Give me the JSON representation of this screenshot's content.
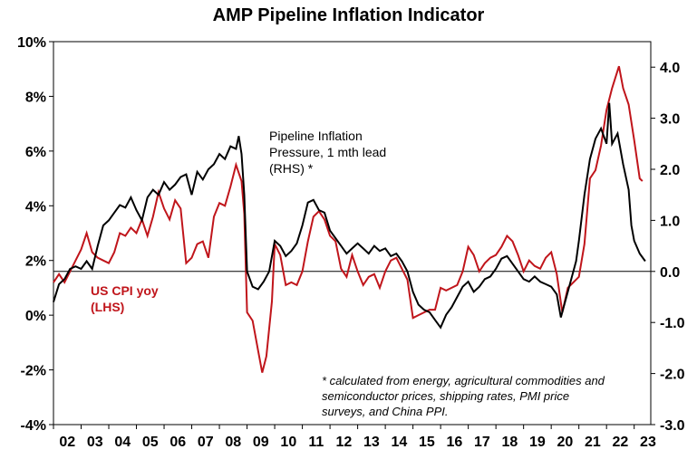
{
  "chart_data": {
    "type": "line",
    "title": "AMP Pipeline Inflation Indicator",
    "x_ticks": [
      "02",
      "03",
      "04",
      "05",
      "06",
      "07",
      "08",
      "09",
      "10",
      "11",
      "12",
      "13",
      "14",
      "15",
      "16",
      "17",
      "18",
      "19",
      "20",
      "21",
      "22",
      "23"
    ],
    "y_left_ticks": [
      "10%",
      "8%",
      "6%",
      "4%",
      "2%",
      "0%",
      "-2%",
      "-4%"
    ],
    "y_right_ticks": [
      "4.0",
      "3.0",
      "2.0",
      "1.0",
      "0.0",
      "-1.0",
      "-2.0",
      "-3.0"
    ],
    "ylim_left": [
      -4,
      10
    ],
    "ylim_right": [
      -3,
      4.5
    ],
    "xlim": [
      2002.0,
      2023.6
    ],
    "colors": {
      "cpi": "#c0151b",
      "pipeline": "#000000"
    },
    "annotations": {
      "pipeline_label": [
        "Pipeline Inflation",
        "Pressure, 1 mth lead",
        "(RHS) *"
      ],
      "cpi_label": [
        "US CPI yoy",
        "(LHS)"
      ],
      "footnote": [
        "* calculated from energy, agricultural commodities and",
        "semiconductor prices, shipping rates, PMI price",
        "surveys, and China PPI."
      ]
    },
    "series": [
      {
        "name": "US CPI yoy",
        "axis": "left",
        "points": [
          [
            2002.0,
            1.2
          ],
          [
            2002.2,
            1.5
          ],
          [
            2002.4,
            1.2
          ],
          [
            2002.6,
            1.6
          ],
          [
            2002.8,
            2.0
          ],
          [
            2003.0,
            2.4
          ],
          [
            2003.2,
            3.0
          ],
          [
            2003.4,
            2.3
          ],
          [
            2003.6,
            2.1
          ],
          [
            2003.8,
            2.0
          ],
          [
            2004.0,
            1.9
          ],
          [
            2004.2,
            2.3
          ],
          [
            2004.4,
            3.0
          ],
          [
            2004.6,
            2.9
          ],
          [
            2004.8,
            3.2
          ],
          [
            2005.0,
            3.0
          ],
          [
            2005.2,
            3.5
          ],
          [
            2005.4,
            2.9
          ],
          [
            2005.6,
            3.6
          ],
          [
            2005.8,
            4.5
          ],
          [
            2006.0,
            3.9
          ],
          [
            2006.2,
            3.5
          ],
          [
            2006.4,
            4.2
          ],
          [
            2006.6,
            3.9
          ],
          [
            2006.8,
            1.9
          ],
          [
            2007.0,
            2.1
          ],
          [
            2007.2,
            2.6
          ],
          [
            2007.4,
            2.7
          ],
          [
            2007.6,
            2.1
          ],
          [
            2007.8,
            3.6
          ],
          [
            2008.0,
            4.1
          ],
          [
            2008.2,
            4.0
          ],
          [
            2008.4,
            4.7
          ],
          [
            2008.6,
            5.5
          ],
          [
            2008.8,
            4.9
          ],
          [
            2008.9,
            3.7
          ],
          [
            2009.0,
            0.1
          ],
          [
            2009.2,
            -0.2
          ],
          [
            2009.4,
            -1.3
          ],
          [
            2009.55,
            -2.1
          ],
          [
            2009.7,
            -1.5
          ],
          [
            2009.9,
            0.5
          ],
          [
            2010.0,
            2.6
          ],
          [
            2010.2,
            2.2
          ],
          [
            2010.4,
            1.1
          ],
          [
            2010.6,
            1.2
          ],
          [
            2010.8,
            1.1
          ],
          [
            2011.0,
            1.6
          ],
          [
            2011.2,
            2.7
          ],
          [
            2011.4,
            3.6
          ],
          [
            2011.6,
            3.8
          ],
          [
            2011.8,
            3.5
          ],
          [
            2012.0,
            2.9
          ],
          [
            2012.2,
            2.7
          ],
          [
            2012.4,
            1.7
          ],
          [
            2012.6,
            1.4
          ],
          [
            2012.8,
            2.2
          ],
          [
            2013.0,
            1.6
          ],
          [
            2013.2,
            1.1
          ],
          [
            2013.4,
            1.4
          ],
          [
            2013.6,
            1.5
          ],
          [
            2013.8,
            1.0
          ],
          [
            2014.0,
            1.6
          ],
          [
            2014.2,
            2.0
          ],
          [
            2014.4,
            2.1
          ],
          [
            2014.6,
            1.7
          ],
          [
            2014.8,
            1.3
          ],
          [
            2015.0,
            -0.1
          ],
          [
            2015.2,
            0.0
          ],
          [
            2015.4,
            0.1
          ],
          [
            2015.6,
            0.2
          ],
          [
            2015.8,
            0.2
          ],
          [
            2016.0,
            1.0
          ],
          [
            2016.2,
            0.9
          ],
          [
            2016.4,
            1.0
          ],
          [
            2016.6,
            1.1
          ],
          [
            2016.8,
            1.6
          ],
          [
            2017.0,
            2.5
          ],
          [
            2017.2,
            2.2
          ],
          [
            2017.4,
            1.6
          ],
          [
            2017.6,
            1.9
          ],
          [
            2017.8,
            2.1
          ],
          [
            2018.0,
            2.2
          ],
          [
            2018.2,
            2.5
          ],
          [
            2018.4,
            2.9
          ],
          [
            2018.6,
            2.7
          ],
          [
            2018.8,
            2.2
          ],
          [
            2019.0,
            1.6
          ],
          [
            2019.2,
            2.0
          ],
          [
            2019.4,
            1.8
          ],
          [
            2019.6,
            1.7
          ],
          [
            2019.8,
            2.1
          ],
          [
            2020.0,
            2.3
          ],
          [
            2020.2,
            1.5
          ],
          [
            2020.4,
            0.1
          ],
          [
            2020.6,
            1.0
          ],
          [
            2020.8,
            1.2
          ],
          [
            2021.0,
            1.4
          ],
          [
            2021.2,
            2.6
          ],
          [
            2021.4,
            5.0
          ],
          [
            2021.6,
            5.3
          ],
          [
            2021.8,
            6.2
          ],
          [
            2022.0,
            7.5
          ],
          [
            2022.2,
            8.3
          ],
          [
            2022.45,
            9.1
          ],
          [
            2022.6,
            8.3
          ],
          [
            2022.8,
            7.7
          ],
          [
            2023.0,
            6.4
          ],
          [
            2023.2,
            5.0
          ],
          [
            2023.3,
            4.9
          ]
        ]
      },
      {
        "name": "Pipeline Inflation Pressure, 1 mth lead",
        "axis": "right",
        "points": [
          [
            2002.0,
            -0.6
          ],
          [
            2002.2,
            -0.25
          ],
          [
            2002.4,
            -0.15
          ],
          [
            2002.6,
            0.05
          ],
          [
            2002.8,
            0.1
          ],
          [
            2003.0,
            0.05
          ],
          [
            2003.2,
            0.2
          ],
          [
            2003.4,
            0.05
          ],
          [
            2003.6,
            0.5
          ],
          [
            2003.8,
            0.9
          ],
          [
            2004.0,
            1.0
          ],
          [
            2004.2,
            1.15
          ],
          [
            2004.4,
            1.3
          ],
          [
            2004.6,
            1.25
          ],
          [
            2004.8,
            1.45
          ],
          [
            2005.0,
            1.2
          ],
          [
            2005.2,
            1.0
          ],
          [
            2005.4,
            1.45
          ],
          [
            2005.6,
            1.6
          ],
          [
            2005.8,
            1.5
          ],
          [
            2006.0,
            1.75
          ],
          [
            2006.2,
            1.6
          ],
          [
            2006.4,
            1.7
          ],
          [
            2006.6,
            1.85
          ],
          [
            2006.8,
            1.9
          ],
          [
            2007.0,
            1.5
          ],
          [
            2007.2,
            1.95
          ],
          [
            2007.4,
            1.8
          ],
          [
            2007.6,
            2.0
          ],
          [
            2007.8,
            2.1
          ],
          [
            2008.0,
            2.3
          ],
          [
            2008.2,
            2.2
          ],
          [
            2008.4,
            2.45
          ],
          [
            2008.6,
            2.4
          ],
          [
            2008.7,
            2.65
          ],
          [
            2008.8,
            2.3
          ],
          [
            2008.9,
            1.5
          ],
          [
            2009.0,
            0.0
          ],
          [
            2009.2,
            -0.3
          ],
          [
            2009.4,
            -0.35
          ],
          [
            2009.6,
            -0.2
          ],
          [
            2009.8,
            0.0
          ],
          [
            2010.0,
            0.6
          ],
          [
            2010.2,
            0.5
          ],
          [
            2010.4,
            0.3
          ],
          [
            2010.6,
            0.4
          ],
          [
            2010.8,
            0.55
          ],
          [
            2011.0,
            0.9
          ],
          [
            2011.2,
            1.35
          ],
          [
            2011.4,
            1.4
          ],
          [
            2011.6,
            1.2
          ],
          [
            2011.8,
            1.15
          ],
          [
            2012.0,
            0.8
          ],
          [
            2012.2,
            0.65
          ],
          [
            2012.4,
            0.5
          ],
          [
            2012.6,
            0.35
          ],
          [
            2012.8,
            0.45
          ],
          [
            2013.0,
            0.55
          ],
          [
            2013.2,
            0.45
          ],
          [
            2013.4,
            0.35
          ],
          [
            2013.6,
            0.5
          ],
          [
            2013.8,
            0.4
          ],
          [
            2014.0,
            0.45
          ],
          [
            2014.2,
            0.3
          ],
          [
            2014.4,
            0.35
          ],
          [
            2014.6,
            0.2
          ],
          [
            2014.8,
            0.0
          ],
          [
            2015.0,
            -0.4
          ],
          [
            2015.2,
            -0.65
          ],
          [
            2015.4,
            -0.75
          ],
          [
            2015.6,
            -0.8
          ],
          [
            2015.8,
            -0.95
          ],
          [
            2016.0,
            -1.1
          ],
          [
            2016.2,
            -0.85
          ],
          [
            2016.4,
            -0.7
          ],
          [
            2016.6,
            -0.5
          ],
          [
            2016.8,
            -0.3
          ],
          [
            2017.0,
            -0.2
          ],
          [
            2017.2,
            -0.4
          ],
          [
            2017.4,
            -0.3
          ],
          [
            2017.6,
            -0.15
          ],
          [
            2017.8,
            -0.1
          ],
          [
            2018.0,
            0.05
          ],
          [
            2018.2,
            0.25
          ],
          [
            2018.4,
            0.3
          ],
          [
            2018.6,
            0.15
          ],
          [
            2018.8,
            0.0
          ],
          [
            2019.0,
            -0.15
          ],
          [
            2019.2,
            -0.2
          ],
          [
            2019.4,
            -0.1
          ],
          [
            2019.6,
            -0.2
          ],
          [
            2019.8,
            -0.25
          ],
          [
            2020.0,
            -0.3
          ],
          [
            2020.2,
            -0.45
          ],
          [
            2020.35,
            -0.9
          ],
          [
            2020.5,
            -0.6
          ],
          [
            2020.7,
            -0.2
          ],
          [
            2020.9,
            0.2
          ],
          [
            2021.0,
            0.6
          ],
          [
            2021.2,
            1.5
          ],
          [
            2021.4,
            2.2
          ],
          [
            2021.6,
            2.6
          ],
          [
            2021.8,
            2.8
          ],
          [
            2022.0,
            2.5
          ],
          [
            2022.1,
            3.3
          ],
          [
            2022.2,
            2.5
          ],
          [
            2022.4,
            2.7
          ],
          [
            2022.6,
            2.1
          ],
          [
            2022.8,
            1.6
          ],
          [
            2022.9,
            0.9
          ],
          [
            2023.0,
            0.6
          ],
          [
            2023.2,
            0.35
          ],
          [
            2023.4,
            0.2
          ]
        ]
      }
    ]
  }
}
